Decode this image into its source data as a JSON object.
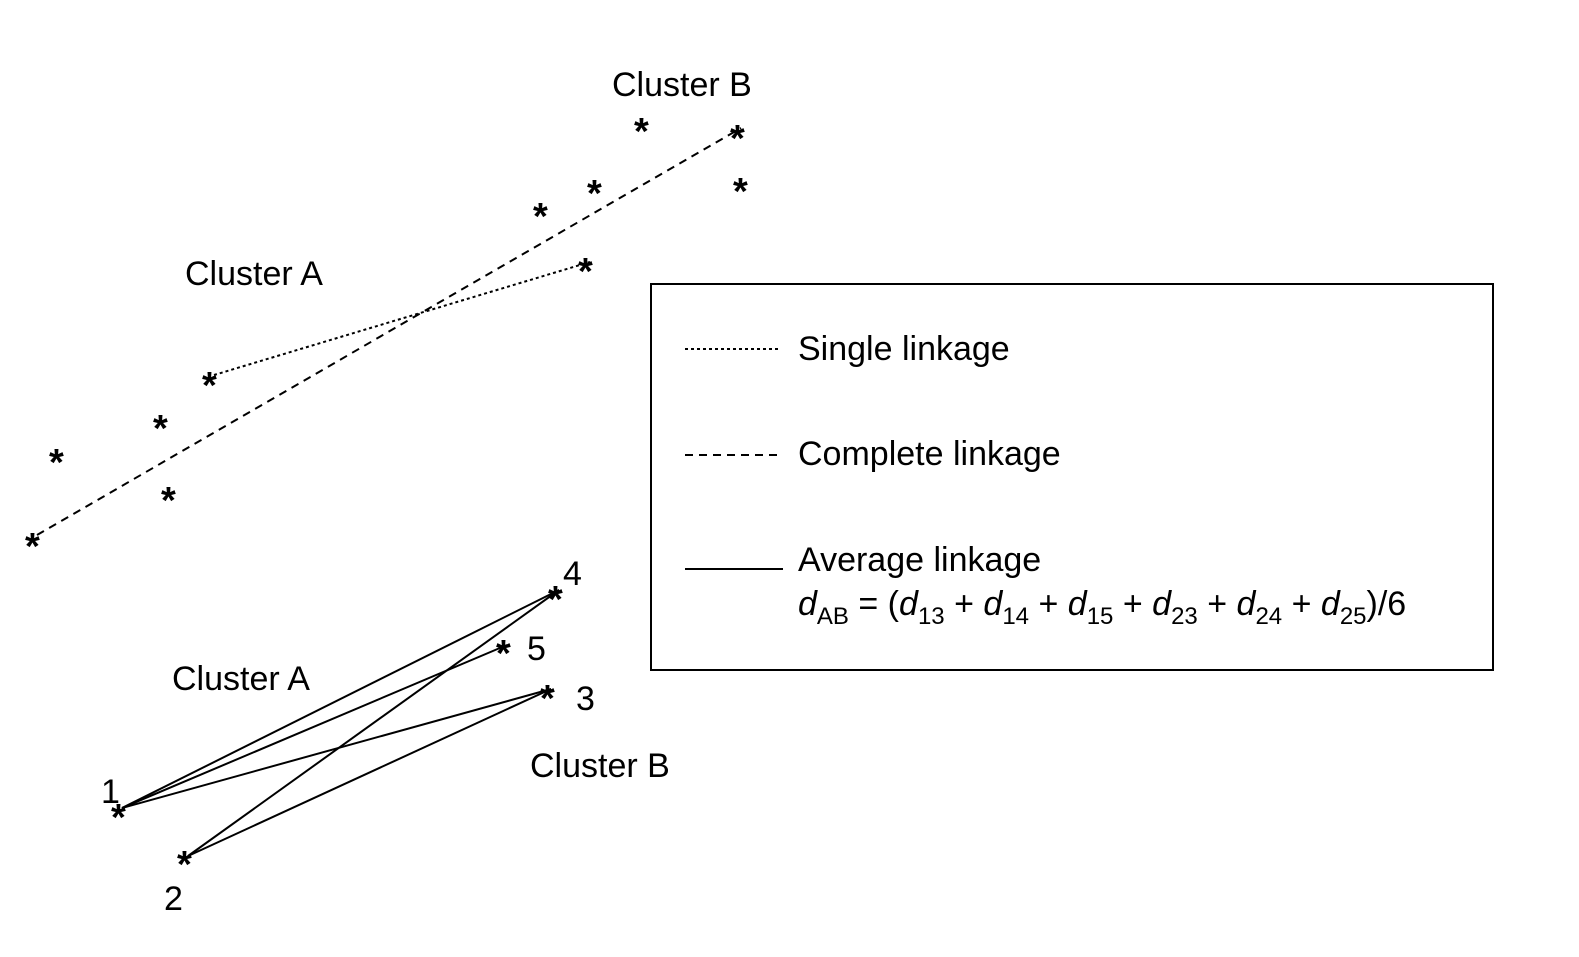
{
  "top_diagram": {
    "cluster_a_label": "Cluster A",
    "cluster_b_label": "Cluster B",
    "point_symbol": "*"
  },
  "bottom_diagram": {
    "cluster_a_label": "Cluster A",
    "cluster_b_label": "Cluster B",
    "point_symbol": "*",
    "point_labels": {
      "p1": "1",
      "p2": "2",
      "p3": "3",
      "p4": "4",
      "p5": "5"
    }
  },
  "legend": {
    "single": "Single linkage",
    "complete": "Complete linkage",
    "average": "Average linkage",
    "formula": {
      "d": "d",
      "ab": "AB",
      "eq_open": " = (",
      "plus": " + ",
      "close": ")/6",
      "subs": [
        "13",
        "14",
        "15",
        "23",
        "24",
        "25"
      ]
    }
  }
}
